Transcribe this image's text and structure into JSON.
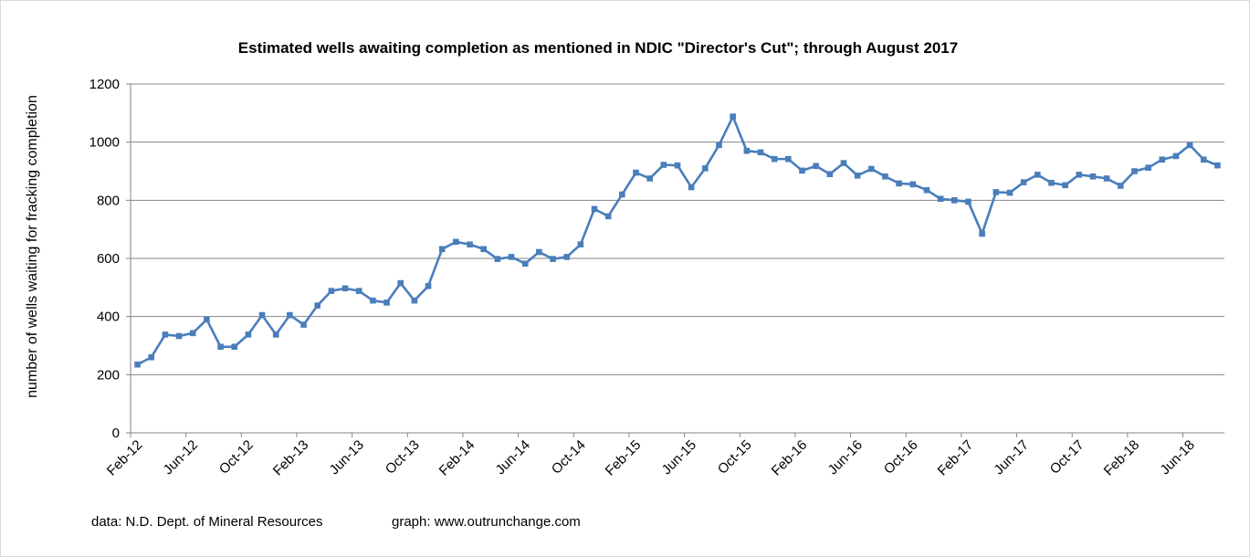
{
  "chart_data": {
    "type": "line",
    "title": "Estimated wells awaiting completion as mentioned in NDIC \"Director's Cut\"; through  August 2017",
    "ylabel": "number of wells waiting for fracking completion",
    "xlabel": "",
    "ylim": [
      0,
      1200
    ],
    "yticks": [
      0,
      200,
      400,
      600,
      800,
      1000,
      1200
    ],
    "grid": true,
    "legend": "none",
    "x_tick_labels": [
      "Feb-12",
      "Jun-12",
      "Oct-12",
      "Feb-13",
      "Jun-13",
      "Oct-13",
      "Feb-14",
      "Jun-14",
      "Oct-14",
      "Feb-15",
      "Jun-15",
      "Oct-15",
      "Feb-16",
      "Jun-16",
      "Oct-16",
      "Feb-17",
      "Jun-17",
      "Oct-17",
      "Feb-18",
      "Jun-18"
    ],
    "series": [
      {
        "color": "#4a7ebb",
        "values": [
          235,
          260,
          338,
          333,
          343,
          390,
          296,
          296,
          338,
          405,
          338,
          405,
          372,
          438,
          488,
          497,
          488,
          455,
          448,
          515,
          455,
          505,
          632,
          657,
          648,
          632,
          598,
          605,
          582,
          622,
          598,
          605,
          648,
          770,
          745,
          820,
          895,
          875,
          922,
          920,
          845,
          910,
          990,
          1088,
          970,
          965,
          942,
          942,
          902,
          918,
          890,
          928,
          885,
          908,
          882,
          858,
          855,
          835,
          805,
          800,
          795,
          685,
          828,
          826,
          862,
          888,
          860,
          852,
          888,
          882,
          875,
          850,
          900,
          912,
          940,
          952,
          990,
          940,
          920
        ]
      }
    ]
  },
  "footer": {
    "source": "data: N.D. Dept. of Mineral Resources",
    "graph": "graph:  www.outrunchange.com"
  }
}
